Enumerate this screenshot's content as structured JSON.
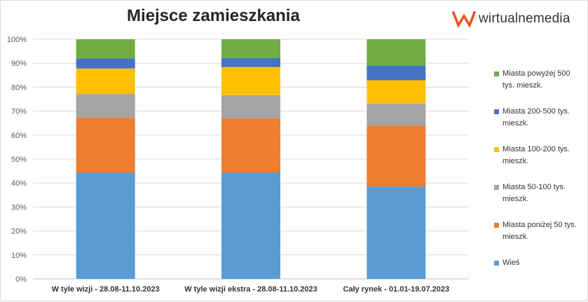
{
  "brand": {
    "name": "wirtualnemedia",
    "icon": "wm-logo-icon",
    "color": "#e8521f"
  },
  "chart_data": {
    "type": "bar",
    "stacked": true,
    "title": "Miejsce zamieszkania",
    "xlabel": "",
    "ylabel": "",
    "ylim": [
      0,
      100
    ],
    "y_ticks": [
      "0%",
      "10%",
      "20%",
      "30%",
      "40%",
      "50%",
      "60%",
      "70%",
      "80%",
      "90%",
      "100%"
    ],
    "grid": true,
    "legend_position": "right",
    "categories": [
      "W tyle wizji - 28.08-11.10.2023",
      "W tyle wizji ekstra - 28.08-11.10.2023",
      "Cały rynek - 01.01-19.07.2023"
    ],
    "series": [
      {
        "name": "Wieś",
        "color": "#5b9bd5",
        "values": [
          44.3,
          44.3,
          38.5
        ]
      },
      {
        "name": "Miasta poniżej 50 tys. mieszk.",
        "color": "#ed7d31",
        "values": [
          23.0,
          22.7,
          25.5
        ]
      },
      {
        "name": "Miasta 50-100 tys. mieszk.",
        "color": "#a5a5a5",
        "values": [
          10.0,
          9.7,
          9.2
        ]
      },
      {
        "name": "Miasta 100-200 tys. mieszk.",
        "color": "#ffc000",
        "values": [
          10.5,
          11.7,
          9.7
        ]
      },
      {
        "name": "Miasta 200-500 tys. mieszk.",
        "color": "#4472c4",
        "values": [
          4.2,
          3.8,
          6.1
        ]
      },
      {
        "name": "Miasta powyżej 500 tys. mieszk.",
        "color": "#70ad47",
        "values": [
          8.0,
          7.8,
          11.0
        ]
      }
    ]
  }
}
